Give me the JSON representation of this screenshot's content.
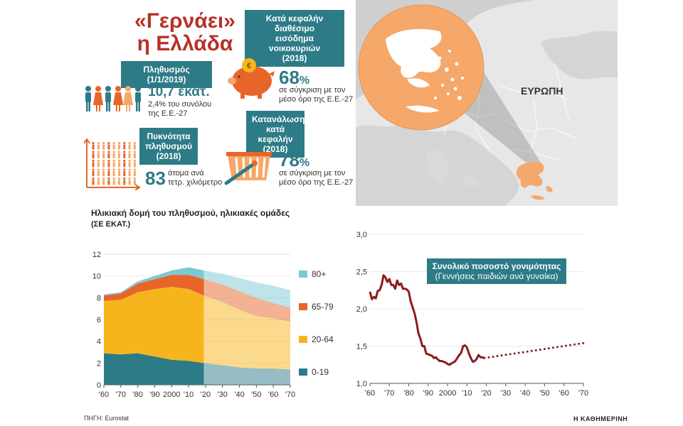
{
  "header": {
    "title_line1": "«Γερνάει»",
    "title_line2": "η Ελλάδα"
  },
  "population": {
    "label": "Πληθυσμός (1/1/2019)",
    "value": "10,7 εκατ.",
    "note1": "2,4% του συνόλου",
    "note2": "της Ε.Ε.-27"
  },
  "density": {
    "label_line1": "Πυκνότητα",
    "label_line2": "πληθυσμού",
    "label_line3": "(2018)",
    "value": "83",
    "note1": "άτομα ανά",
    "note2": "τετρ. χιλιόμετρο"
  },
  "income": {
    "label_line1": "Κατά κεφαλήν διαθέσιμο",
    "label_line2": "εισόδημα νοικοκυριών",
    "label_line3": "(2018)",
    "value": "68",
    "percent": "%",
    "note1": "σε σύγκριση με τον",
    "note2": "μέσο όρο της Ε.Ε.-27"
  },
  "consumption": {
    "label_line1": "Κατανάλωση",
    "label_line2": "κατά κεφαλήν",
    "label_line3": "(2018)",
    "value": "78",
    "percent": "%",
    "note1": "σε σύγκριση με τον",
    "note2": "μέσο όρο της Ε.Ε.-27"
  },
  "map": {
    "label": "ΕΥΡΩΠΗ"
  },
  "colors": {
    "teal": "#2d7b87",
    "title_red": "#b5332a",
    "orange": "#f5a86a",
    "s0_19": "#2d7b87",
    "s20_64": "#f7b51d",
    "s65_79": "#e8652a",
    "s80": "#7cc9d1",
    "fertility": "#8b1c1c"
  },
  "chart_data": [
    {
      "type": "area",
      "title": "Ηλικιακή δομή του πληθυσμού, ηλικιακές ομάδες",
      "subtitle": "(ΣΕ ΕΚΑΤ.)",
      "x": [
        1960,
        1970,
        1980,
        1990,
        2000,
        2010,
        2019,
        2030,
        2040,
        2050,
        2060,
        2070
      ],
      "xticks": [
        "'60",
        "'70",
        "'80",
        "'90",
        "2000",
        "'10",
        "'20",
        "'30",
        "'40",
        "'50",
        "'60",
        "'70"
      ],
      "yticks": [
        "0",
        "2",
        "4",
        "6",
        "8",
        "10",
        "12"
      ],
      "ylim": [
        0,
        12
      ],
      "projection_start": 2019,
      "series": [
        {
          "name": "0-19",
          "values": [
            2.9,
            2.8,
            2.9,
            2.6,
            2.3,
            2.2,
            2.0,
            1.8,
            1.6,
            1.5,
            1.5,
            1.4
          ]
        },
        {
          "name": "20-64",
          "values": [
            4.8,
            5.0,
            5.6,
            6.2,
            6.7,
            6.6,
            6.2,
            5.8,
            5.3,
            4.8,
            4.6,
            4.4
          ]
        },
        {
          "name": "65-79",
          "values": [
            0.5,
            0.6,
            0.8,
            0.9,
            1.1,
            1.3,
            1.5,
            1.6,
            1.7,
            1.7,
            1.4,
            1.3
          ]
        },
        {
          "name": "80+",
          "values": [
            0.1,
            0.1,
            0.2,
            0.3,
            0.4,
            0.7,
            0.8,
            1.0,
            1.2,
            1.4,
            1.6,
            1.6
          ]
        }
      ],
      "legend": [
        "80+",
        "65-79",
        "20-64",
        "0-19"
      ]
    },
    {
      "type": "line",
      "title": "Συνολικό ποσοστό γονιμότητας",
      "subtitle": "(Γεννήσεις παιδιών ανά γυναίκα)",
      "xticks": [
        "'60",
        "'70",
        "'80",
        "'90",
        "2000",
        "'10",
        "'20",
        "'30",
        "'40",
        "'50",
        "'60",
        "'70"
      ],
      "yticks": [
        "1,0",
        "1,5",
        "2,0",
        "2,5",
        "3,0"
      ],
      "ylim": [
        1.0,
        3.0
      ],
      "x": [
        1960,
        1961,
        1962,
        1963,
        1964,
        1965,
        1966,
        1967,
        1968,
        1969,
        1970,
        1971,
        1972,
        1973,
        1974,
        1975,
        1976,
        1977,
        1978,
        1979,
        1980,
        1981,
        1982,
        1983,
        1984,
        1985,
        1986,
        1987,
        1988,
        1989,
        1990,
        1991,
        1992,
        1993,
        1994,
        1995,
        1996,
        1997,
        1998,
        1999,
        2000,
        2001,
        2002,
        2003,
        2004,
        2005,
        2006,
        2007,
        2008,
        2009,
        2010,
        2011,
        2012,
        2013,
        2014,
        2015,
        2016,
        2017,
        2018,
        2019
      ],
      "actual": [
        2.23,
        2.13,
        2.16,
        2.14,
        2.24,
        2.25,
        2.32,
        2.45,
        2.42,
        2.36,
        2.4,
        2.32,
        2.32,
        2.27,
        2.38,
        2.32,
        2.34,
        2.27,
        2.27,
        2.26,
        2.23,
        2.1,
        2.02,
        1.94,
        1.82,
        1.67,
        1.6,
        1.5,
        1.5,
        1.4,
        1.39,
        1.38,
        1.37,
        1.34,
        1.35,
        1.32,
        1.3,
        1.3,
        1.29,
        1.28,
        1.26,
        1.25,
        1.27,
        1.28,
        1.3,
        1.34,
        1.38,
        1.41,
        1.5,
        1.51,
        1.48,
        1.4,
        1.34,
        1.29,
        1.3,
        1.33,
        1.38,
        1.35,
        1.35,
        1.34
      ],
      "projection_x": [
        2019,
        2070
      ],
      "projection": [
        1.34,
        1.54
      ]
    }
  ],
  "footer": {
    "source": "ΠΗΓΗ: Eurostat",
    "brand": "Η ΚΑΘΗΜΕΡΙΝΗ"
  }
}
